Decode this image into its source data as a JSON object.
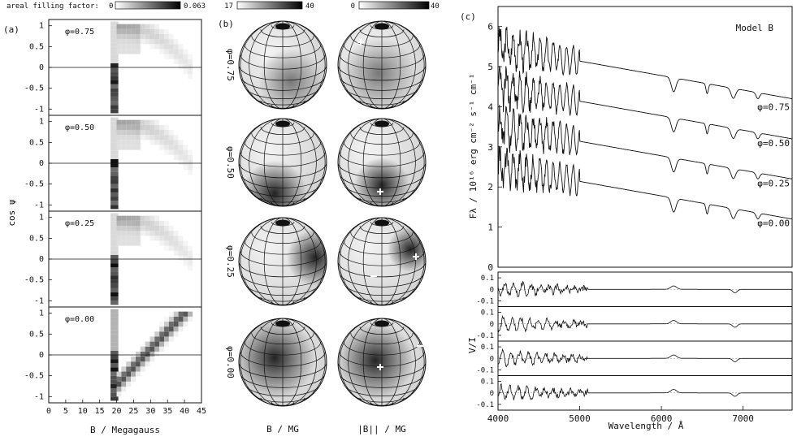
{
  "panels": {
    "a": {
      "label": "(a)",
      "colorbar_title": "areal filling factor:",
      "colorbar_min": "0",
      "colorbar_max": "0.063",
      "ylabel": "cos ψ",
      "xlabel": "B / Megagauss",
      "xticks": [
        "0",
        "5",
        "10",
        "15",
        "20",
        "25",
        "30",
        "35",
        "40",
        "45"
      ],
      "yticks": [
        "1",
        "0.5",
        "0",
        "-0.5",
        "-1"
      ],
      "phases": [
        "φ=0.75",
        "φ=0.50",
        "φ=0.25",
        "φ=0.00"
      ]
    },
    "b": {
      "label": "(b)",
      "colorbar1_min": "17",
      "colorbar1_max": "40",
      "colorbar2_min": "0",
      "colorbar2_max": "40",
      "col1_label": "B / MG",
      "col2_label": "|B|| / MG",
      "phases": [
        "φ=0.75",
        "φ=0.50",
        "φ=0.25",
        "φ=0.00"
      ]
    },
    "c": {
      "label": "(c)",
      "model": "Model B",
      "ylabel": "Fλ / 10¹⁶ erg cm⁻² s⁻¹ cm⁻¹",
      "ylabel2": "V/I",
      "xlabel": "Wavelength / Å",
      "xticks": [
        "4000",
        "5000",
        "6000",
        "7000"
      ],
      "yticks": [
        "0",
        "1",
        "2",
        "3",
        "4",
        "5",
        "6"
      ],
      "vticks": [
        "0.1",
        "0",
        "-0.1"
      ],
      "curve_labels": [
        "φ=0.75",
        "φ=0.50",
        "φ=0.25",
        "φ=0.00"
      ]
    }
  },
  "chart_data": [
    {
      "type": "heatmap",
      "title": "",
      "xlabel": "B / Megagauss",
      "ylabel": "cos ψ",
      "xlim": [
        0,
        45
      ],
      "ylim": [
        -1.1,
        1.1
      ],
      "panels": [
        "φ=0.75",
        "φ=0.50",
        "φ=0.25",
        "φ=0.00"
      ]
    },
    {
      "type": "line",
      "title": "Model B",
      "xlabel": "Wavelength / Å",
      "ylabel": "Fλ / 10¹⁶ erg cm⁻² s⁻¹ cm⁻¹",
      "xlim": [
        4000,
        7600
      ],
      "ylim": [
        0,
        6.5
      ],
      "series": [
        {
          "name": "φ=0.75",
          "offset": 3.0
        },
        {
          "name": "φ=0.50",
          "offset": 2.0
        },
        {
          "name": "φ=0.25",
          "offset": 1.0
        },
        {
          "name": "φ=0.00",
          "offset": 0.0
        }
      ]
    }
  ]
}
